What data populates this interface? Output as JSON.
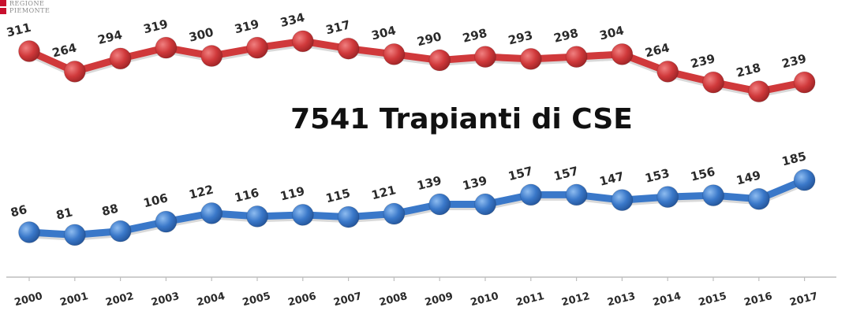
{
  "logo": {
    "line1": "REGIONE",
    "line2": "PIEMONTE"
  },
  "chart_data": {
    "type": "line",
    "title": "7541 Trapianti di CSE",
    "xlabel": "",
    "ylabel": "",
    "categories": [
      "2000",
      "2001",
      "2002",
      "2003",
      "2004",
      "2005",
      "2006",
      "2007",
      "2008",
      "2009",
      "2010",
      "2011",
      "2012",
      "2013",
      "2014",
      "2015",
      "2016",
      "2017"
    ],
    "series": [
      {
        "color": "#d0393b",
        "values": [
          311,
          264,
          294,
          319,
          300,
          319,
          334,
          317,
          304,
          290,
          298,
          293,
          298,
          304,
          264,
          239,
          218,
          239
        ]
      },
      {
        "color": "#3a78c9",
        "values": [
          86,
          81,
          88,
          106,
          122,
          116,
          119,
          115,
          121,
          139,
          139,
          157,
          157,
          147,
          153,
          156,
          149,
          185
        ]
      }
    ],
    "grid": false,
    "legend": "none"
  }
}
